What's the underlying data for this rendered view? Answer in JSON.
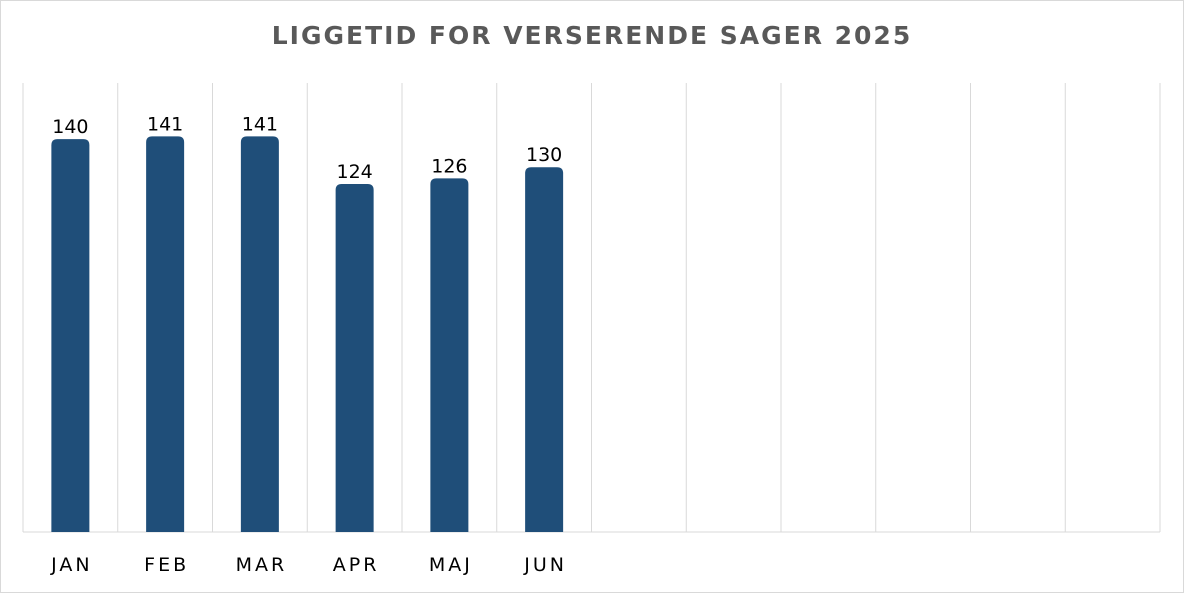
{
  "chart_data": {
    "type": "bar",
    "title": "LIGGETID FOR VERSERENDE SAGER 2025",
    "xlabel": "",
    "ylabel": "",
    "categories": [
      "JAN",
      "FEB",
      "MAR",
      "APR",
      "MAJ",
      "JUN",
      "",
      "",
      "",
      "",
      "",
      ""
    ],
    "values": [
      140,
      141,
      141,
      124,
      126,
      130,
      null,
      null,
      null,
      null,
      null,
      null
    ],
    "value_labels": [
      "140",
      "141",
      "141",
      "124",
      "126",
      "130",
      "",
      "",
      "",
      "",
      "",
      ""
    ],
    "ylim": [
      0,
      160
    ],
    "grid": "vertical",
    "legend": "none",
    "bar_color": "#1f4e79"
  }
}
